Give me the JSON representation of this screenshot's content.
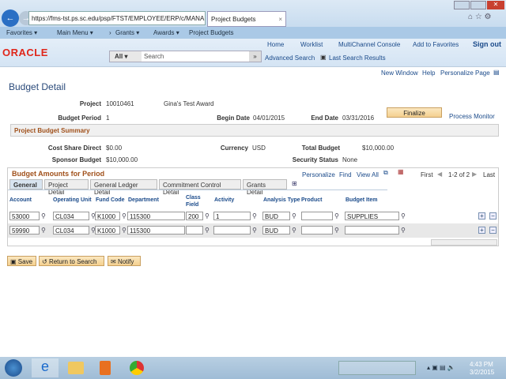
{
  "browser": {
    "url": "https://fms-tst.ps.sc.edu/psp/FTST/EMPLOYEE/ERP/c/MANA",
    "tab_title": "Project Budgets"
  },
  "menubar": {
    "favorites": "Favorites ▾",
    "main_menu": "Main Menu ▾",
    "crumbs": [
      "Grants ▾",
      "Awards ▾",
      "Project Budgets"
    ]
  },
  "header": {
    "logo": "ORACLE",
    "links": [
      "Home",
      "Worklist",
      "MultiChannel Console",
      "Add to Favorites",
      "Sign out"
    ],
    "search_scope": "All",
    "search_placeholder": "Search",
    "advanced_search": "Advanced Search",
    "last_search": "Last Search Results"
  },
  "pagelinks": [
    "New Window",
    "Help",
    "Personalize Page"
  ],
  "page": {
    "title": "Budget Detail",
    "project_label": "Project",
    "project": "10010461",
    "project_desc": "Gina's Test Award",
    "period_label": "Budget Period",
    "period": "1",
    "begin_label": "Begin Date",
    "begin": "04/01/2015",
    "end_label": "End Date",
    "end": "03/31/2016",
    "finalize": "Finalize",
    "process_monitor": "Process Monitor",
    "summary_title": "Project Budget Summary",
    "cost_share_label": "Cost Share Direct",
    "cost_share": "$0.00",
    "currency_label": "Currency",
    "currency": "USD",
    "total_label": "Total Budget",
    "total": "$10,000.00",
    "sponsor_label": "Sponsor Budget",
    "sponsor": "$10,000.00",
    "security_label": "Security Status",
    "security": "None"
  },
  "grid": {
    "title": "Budget Amounts for Period",
    "personalize": "Personalize",
    "find": "Find",
    "view_all": "View All",
    "first": "First",
    "range": "1-2 of 2",
    "last": "Last",
    "tabs": [
      "General",
      "Project Detail",
      "General Ledger Detail",
      "Commitment Control Detail",
      "Grants Detail"
    ],
    "columns": [
      "Account",
      "Operating Unit",
      "Fund Code",
      "Department",
      "Class Field",
      "Activity",
      "Analysis Type",
      "Product",
      "Budget Item"
    ],
    "rows": [
      [
        "53000",
        "CL034",
        "K1000",
        "115300",
        "200",
        "1",
        "BUD",
        "",
        "SUPPLIES"
      ],
      [
        "59990",
        "CL034",
        "K1000",
        "115300",
        "",
        "",
        "BUD",
        "",
        ""
      ]
    ]
  },
  "buttons": {
    "save": "Save",
    "return": "Return to Search",
    "notify": "Notify"
  },
  "taskbar": {
    "time": "4:43 PM",
    "date": "3/2/2015"
  }
}
